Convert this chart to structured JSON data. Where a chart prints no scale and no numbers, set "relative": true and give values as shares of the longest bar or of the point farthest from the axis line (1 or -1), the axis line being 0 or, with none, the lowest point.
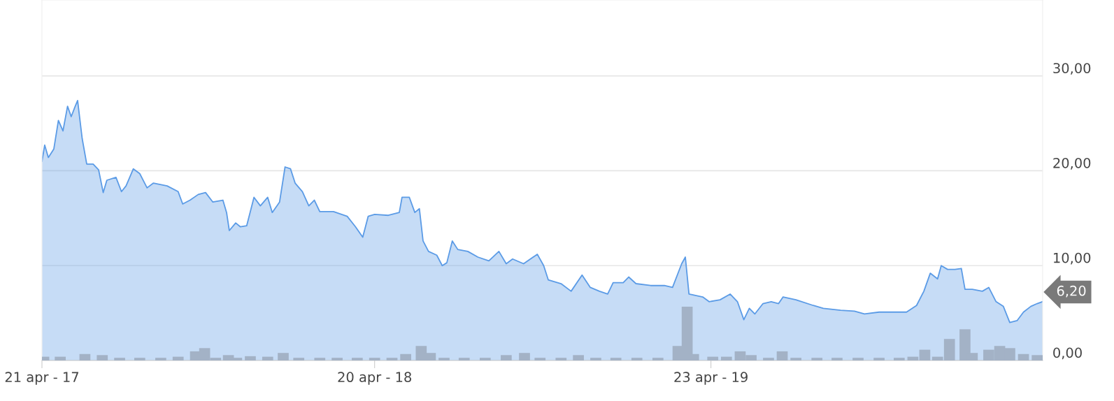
{
  "chart_data": [
    {
      "type": "area",
      "grid": "y",
      "xlim": [
        "2017-04-21",
        "2020-04-20"
      ],
      "ylim": [
        0,
        38
      ],
      "xticks": [
        {
          "value": "2017-04-21",
          "label": "21 apr - 17"
        },
        {
          "value": "2018-04-20",
          "label": "20 apr - 18"
        },
        {
          "value": "2019-04-23",
          "label": "23 apr - 19"
        }
      ],
      "yticks": [
        {
          "value": 0,
          "label": "0,00"
        },
        {
          "value": 10,
          "label": "10,00"
        },
        {
          "value": 20,
          "label": "20,00"
        },
        {
          "value": 30,
          "label": "30,00"
        }
      ],
      "annotations": [
        {
          "text": "6,20",
          "x": "2020-04-20",
          "y": 6.2
        }
      ],
      "series": [
        {
          "color": "#5b9be6",
          "x": [
            "2017-04-21",
            "2017-04-24",
            "2017-04-28",
            "2017-05-04",
            "2017-05-09",
            "2017-05-14",
            "2017-05-19",
            "2017-05-23",
            "2017-05-27",
            "2017-05-30",
            "2017-06-04",
            "2017-06-09",
            "2017-06-16",
            "2017-06-22",
            "2017-06-27",
            "2017-07-01",
            "2017-07-11",
            "2017-07-17",
            "2017-07-22",
            "2017-07-30",
            "2017-08-06",
            "2017-08-14",
            "2017-08-21",
            "2017-09-05",
            "2017-09-17",
            "2017-09-22",
            "2017-09-30",
            "2017-10-09",
            "2017-10-17",
            "2017-10-25",
            "2017-11-05",
            "2017-11-09",
            "2017-11-12",
            "2017-11-19",
            "2017-11-24",
            "2017-12-01",
            "2017-12-09",
            "2017-12-16",
            "2017-12-24",
            "2017-12-29",
            "2018-01-06",
            "2018-01-12",
            "2018-01-18",
            "2018-01-23",
            "2018-01-31",
            "2018-02-07",
            "2018-02-13",
            "2018-02-19",
            "2018-03-06",
            "2018-03-21",
            "2018-03-30",
            "2018-04-07",
            "2018-04-13",
            "2018-04-20",
            "2018-05-05",
            "2018-05-17",
            "2018-05-20",
            "2018-05-28",
            "2018-06-03",
            "2018-06-08",
            "2018-06-12",
            "2018-06-18",
            "2018-06-27",
            "2018-07-03",
            "2018-07-08",
            "2018-07-14",
            "2018-07-20",
            "2018-07-31",
            "2018-08-11",
            "2018-08-23",
            "2018-09-03",
            "2018-09-11",
            "2018-09-18",
            "2018-09-30",
            "2018-10-15",
            "2018-10-22",
            "2018-10-27",
            "2018-11-10",
            "2018-11-21",
            "2018-12-03",
            "2018-12-12",
            "2018-12-22",
            "2018-12-31",
            "2019-01-06",
            "2019-01-17",
            "2019-01-23",
            "2019-01-31",
            "2019-02-16",
            "2019-03-03",
            "2019-03-12",
            "2019-03-22",
            "2019-03-26",
            "2019-03-30",
            "2019-04-14",
            "2019-04-21",
            "2019-05-03",
            "2019-05-14",
            "2019-05-22",
            "2019-05-29",
            "2019-06-04",
            "2019-06-10",
            "2019-06-19",
            "2019-06-28",
            "2019-07-06",
            "2019-07-11",
            "2019-07-25",
            "2019-08-13",
            "2019-08-24",
            "2019-09-12",
            "2019-09-27",
            "2019-10-08",
            "2019-10-24",
            "2019-11-08",
            "2019-11-23",
            "2019-12-04",
            "2019-12-12",
            "2019-12-19",
            "2019-12-27",
            "2019-12-31",
            "2020-01-07",
            "2020-01-15",
            "2020-01-22",
            "2020-01-26",
            "2020-02-03",
            "2020-02-14",
            "2020-02-21",
            "2020-02-29",
            "2020-03-08",
            "2020-03-15",
            "2020-03-23",
            "2020-03-30",
            "2020-04-07",
            "2020-04-14",
            "2020-04-20"
          ],
          "values": [
            21.0,
            22.7,
            21.4,
            22.3,
            25.3,
            24.2,
            26.8,
            25.7,
            26.7,
            27.4,
            23.4,
            20.7,
            20.7,
            20.1,
            17.7,
            19.0,
            19.3,
            17.8,
            18.4,
            20.2,
            19.7,
            18.2,
            18.7,
            18.4,
            17.8,
            16.5,
            16.9,
            17.5,
            17.7,
            16.7,
            16.9,
            15.6,
            13.7,
            14.5,
            14.1,
            14.2,
            17.2,
            16.3,
            17.2,
            15.6,
            16.7,
            20.4,
            20.2,
            18.7,
            17.8,
            16.3,
            16.9,
            15.7,
            15.7,
            15.2,
            14.1,
            13.0,
            15.2,
            15.4,
            15.3,
            15.6,
            17.2,
            17.2,
            15.6,
            16.0,
            12.6,
            11.5,
            11.1,
            10.0,
            10.3,
            12.6,
            11.7,
            11.5,
            10.9,
            10.5,
            11.5,
            10.2,
            10.7,
            10.2,
            11.2,
            10.0,
            8.5,
            8.1,
            7.3,
            9.0,
            7.7,
            7.3,
            7.0,
            8.2,
            8.2,
            8.8,
            8.1,
            7.9,
            7.9,
            7.7,
            10.2,
            10.9,
            7.0,
            6.7,
            6.2,
            6.4,
            7.0,
            6.2,
            4.3,
            5.5,
            4.9,
            6.0,
            6.2,
            6.0,
            6.7,
            6.4,
            5.8,
            5.5,
            5.3,
            5.2,
            4.9,
            5.1,
            5.1,
            5.1,
            5.8,
            7.3,
            9.2,
            8.6,
            10.0,
            9.6,
            9.6,
            9.7,
            7.5,
            7.5,
            7.3,
            7.7,
            6.2,
            5.7,
            4.0,
            4.2,
            5.1,
            5.7,
            6.0,
            6.2
          ]
        }
      ]
    },
    {
      "type": "bar",
      "relative": true,
      "xlim": [
        "2017-04-21",
        "2020-04-20"
      ],
      "x": [
        "2017-04-23",
        "2017-05-11",
        "2017-06-07",
        "2017-06-26",
        "2017-07-15",
        "2017-08-06",
        "2017-08-29",
        "2017-09-17",
        "2017-10-06",
        "2017-10-16",
        "2017-10-28",
        "2017-11-11",
        "2017-11-20",
        "2017-12-05",
        "2017-12-24",
        "2018-01-10",
        "2018-01-27",
        "2018-02-19",
        "2018-03-10",
        "2018-04-01",
        "2018-04-20",
        "2018-05-09",
        "2018-05-24",
        "2018-06-10",
        "2018-06-20",
        "2018-07-05",
        "2018-07-27",
        "2018-08-19",
        "2018-09-11",
        "2018-10-01",
        "2018-10-18",
        "2018-11-10",
        "2018-11-29",
        "2018-12-18",
        "2019-01-09",
        "2019-02-01",
        "2019-02-24",
        "2019-03-18",
        "2019-03-28",
        "2019-04-04",
        "2019-04-25",
        "2019-05-10",
        "2019-05-25",
        "2019-06-06",
        "2019-06-25",
        "2019-07-10",
        "2019-07-25",
        "2019-08-17",
        "2019-09-08",
        "2019-10-01",
        "2019-10-24",
        "2019-11-15",
        "2019-11-30",
        "2019-12-13",
        "2019-12-27",
        "2020-01-09",
        "2020-01-26",
        "2020-02-03",
        "2020-02-21",
        "2020-03-04",
        "2020-03-15",
        "2020-03-30",
        "2020-04-14"
      ],
      "series": [
        {
          "color": "#a3b2c6",
          "values": [
            0.07,
            0.07,
            0.12,
            0.1,
            0.05,
            0.05,
            0.05,
            0.07,
            0.17,
            0.23,
            0.05,
            0.1,
            0.05,
            0.08,
            0.07,
            0.14,
            0.05,
            0.05,
            0.05,
            0.05,
            0.05,
            0.05,
            0.12,
            0.27,
            0.14,
            0.05,
            0.05,
            0.05,
            0.1,
            0.14,
            0.05,
            0.05,
            0.1,
            0.05,
            0.05,
            0.05,
            0.05,
            0.27,
            1.0,
            0.12,
            0.07,
            0.07,
            0.17,
            0.1,
            0.05,
            0.17,
            0.05,
            0.05,
            0.05,
            0.05,
            0.05,
            0.05,
            0.07,
            0.2,
            0.07,
            0.4,
            0.58,
            0.14,
            0.2,
            0.27,
            0.23,
            0.12,
            0.1
          ]
        }
      ]
    }
  ]
}
